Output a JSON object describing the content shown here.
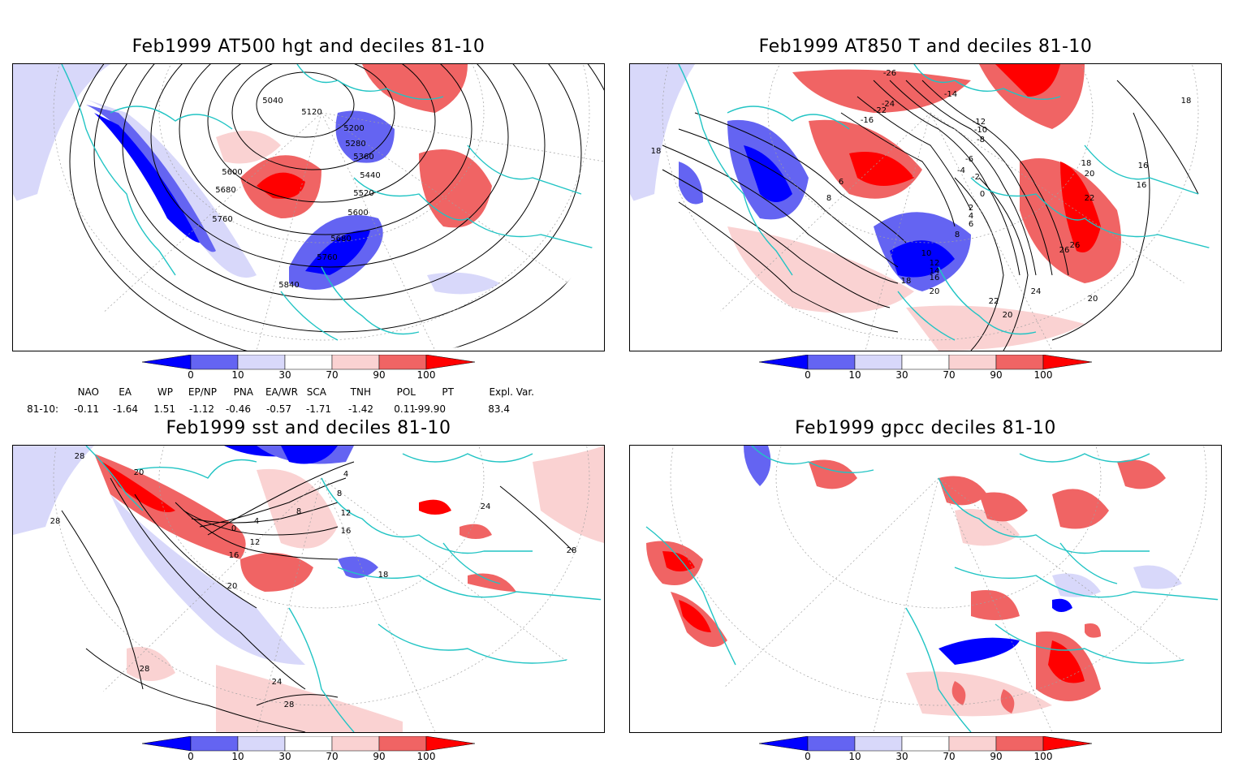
{
  "panels": [
    {
      "id": "p1",
      "title": "Feb1999 AT500 hgt and deciles 81-10",
      "contour_labels": [
        "5040",
        "5120",
        "5200",
        "5280",
        "5360",
        "5440",
        "5520",
        "5600",
        "5600",
        "5680",
        "5680",
        "5760",
        "5760",
        "5840"
      ]
    },
    {
      "id": "p2",
      "title": "Feb1999 AT850 T and deciles 81-10",
      "contour_labels": [
        "-26",
        "-24",
        "-22",
        "-16",
        "-14",
        "-12",
        "-10",
        "-8",
        "-6",
        "-4",
        "-2",
        "0",
        "2",
        "4",
        "6",
        "6",
        "8",
        "8",
        "10",
        "12",
        "14",
        "16",
        "18",
        "18",
        "18",
        "16",
        "20",
        "20",
        "20",
        "22",
        "22",
        "24",
        "26",
        "26",
        "20",
        "18",
        "16"
      ]
    },
    {
      "id": "p3",
      "title": "Feb1999 sst and deciles 81-10",
      "contour_labels": [
        "28",
        "20",
        "28",
        "0",
        "4",
        "8",
        "12",
        "16",
        "20",
        "4",
        "8",
        "12",
        "16",
        "18",
        "24",
        "28",
        "28",
        "24",
        "28"
      ]
    },
    {
      "id": "p4",
      "title": "Feb1999 gpcc deciles 81-10",
      "contour_labels": []
    }
  ],
  "colorbar": {
    "ticks": [
      "0",
      "10",
      "30",
      "70",
      "90",
      "100"
    ],
    "colors": {
      "dark_blue": "#0000ff",
      "mid_blue": "#6464f2",
      "light_blue": "#d8d8fa",
      "white": "#ffffff",
      "light_red": "#fad2d2",
      "mid_red": "#f06464",
      "dark_red": "#ff0000"
    }
  },
  "indices": {
    "headers": [
      "NAO",
      "EA",
      "WP",
      "EP/NP",
      "PNA",
      "EA/WR",
      "SCA",
      "TNH",
      "POL",
      "PT",
      "Expl. Var."
    ],
    "row_label": "81-10:",
    "values": [
      "-0.11",
      "-1.64",
      "1.51",
      "-1.12",
      "-0.46",
      "-0.57",
      "-1.71",
      "-1.42",
      "0.11",
      "-99.90",
      "83.4"
    ]
  },
  "map_colors": {
    "coast": "#21c4c4",
    "contour": "#000000",
    "grid": "#a0a0a0"
  }
}
